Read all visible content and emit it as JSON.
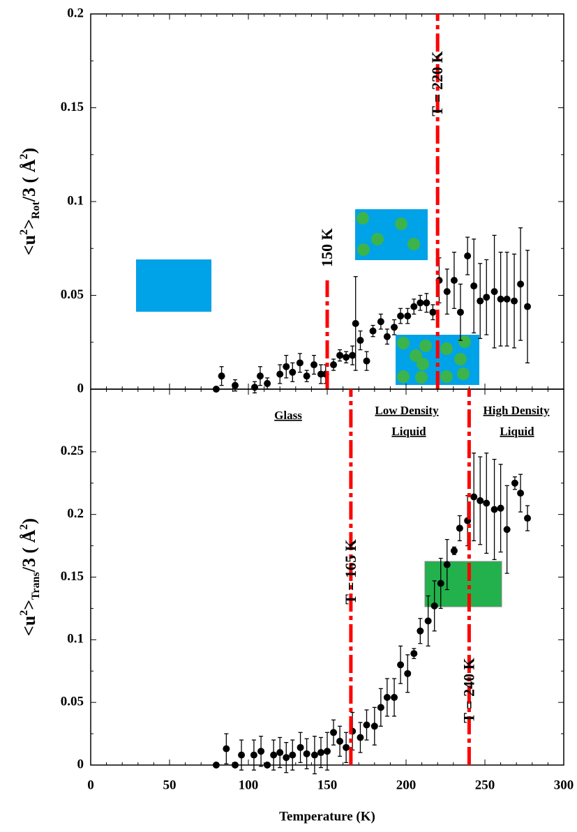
{
  "chart_data": [
    {
      "type": "scatter",
      "ylabel": [
        "<u",
        "2",
        ">",
        "Rot",
        "/3 ( Å",
        "2",
        ")"
      ],
      "xlim": [
        0,
        300
      ],
      "ylim": [
        0,
        0.2
      ],
      "yticks": [
        0,
        0.05,
        0.1,
        0.15,
        0.2
      ],
      "series": [
        {
          "color": "#000000",
          "x": [
            79.6,
            83,
            91.6,
            104,
            107.5,
            112,
            120,
            124,
            128,
            132.7,
            137,
            141.6,
            146,
            149,
            154,
            158,
            162,
            166,
            168,
            171,
            175,
            179,
            184,
            188,
            192.5,
            196.5,
            201,
            205,
            209,
            213,
            217,
            221,
            226,
            230.5,
            234.5,
            239,
            243,
            247,
            251,
            256,
            260,
            264,
            268.6,
            272.6,
            277
          ],
          "values": [
            0,
            0.007,
            0.002,
            0.001,
            0.007,
            0.003,
            0.008,
            0.012,
            0.009,
            0.014,
            0.007,
            0.013,
            0.008,
            0.008,
            0.013,
            0.018,
            0.017,
            0.018,
            0.035,
            0.026,
            0.015,
            0.031,
            0.036,
            0.028,
            0.033,
            0.039,
            0.039,
            0.044,
            0.046,
            0.046,
            0.041,
            0.058,
            0.052,
            0.058,
            0.041,
            0.071,
            0.055,
            0.047,
            0.049,
            0.052,
            0.048,
            0.048,
            0.047,
            0.056,
            0.044
          ],
          "errors": [
            0,
            0.005,
            0.003,
            0.003,
            0.005,
            0.003,
            0.005,
            0.006,
            0.005,
            0.005,
            0.003,
            0.005,
            0.005,
            0.005,
            0.003,
            0.003,
            0.003,
            0.005,
            0.025,
            0.005,
            0.005,
            0.003,
            0.004,
            0.004,
            0.004,
            0.004,
            0.004,
            0.004,
            0.004,
            0.005,
            0.004,
            0.012,
            0.012,
            0.015,
            0.015,
            0.01,
            0.025,
            0.02,
            0.02,
            0.03,
            0.025,
            0.025,
            0.025,
            0.03,
            0.03
          ]
        }
      ],
      "vlines": [
        {
          "x": 150,
          "label": "150 K",
          "color": "#ff0000"
        },
        {
          "x": 220,
          "label": "T = 220 K",
          "color": "#ff0000"
        }
      ]
    },
    {
      "type": "scatter",
      "ylabel": [
        "<u",
        "2",
        ">",
        "Trans",
        "/3 ( Å",
        "2",
        ")"
      ],
      "xlabel": "Temperature (K)",
      "xlim": [
        0,
        300
      ],
      "xticks": [
        0,
        50,
        100,
        150,
        200,
        250,
        300
      ],
      "ylim": [
        0,
        0.3
      ],
      "yticks": [
        0,
        0.05,
        0.1,
        0.15,
        0.2,
        0.25
      ],
      "series": [
        {
          "color": "#000000",
          "x": [
            79.6,
            86,
            91.6,
            95.6,
            103.5,
            108,
            112,
            116,
            120,
            124,
            128,
            133,
            137,
            142,
            146,
            150,
            154,
            158,
            162,
            166,
            171,
            175,
            180,
            184,
            188,
            192.5,
            196.5,
            201,
            205,
            209,
            214,
            218,
            222,
            226,
            230.5,
            234,
            239,
            243,
            247,
            251,
            256,
            260,
            264,
            269,
            272.6,
            277
          ],
          "values": [
            0,
            0.013,
            0,
            0.008,
            0.008,
            0.011,
            0,
            0.008,
            0.01,
            0.006,
            0.008,
            0.014,
            0.009,
            0.008,
            0.01,
            0.011,
            0.026,
            0.019,
            0.014,
            0.027,
            0.022,
            0.032,
            0.031,
            0.046,
            0.054,
            0.054,
            0.08,
            0.073,
            0.089,
            0.107,
            0.115,
            0.127,
            0.145,
            0.16,
            0.171,
            0.189,
            0.195,
            0.214,
            0.211,
            0.209,
            0.204,
            0.205,
            0.188,
            0.225,
            0.217,
            0.197
          ],
          "errors": [
            0,
            0.012,
            0,
            0.012,
            0.012,
            0.012,
            0,
            0.012,
            0.012,
            0.012,
            0.012,
            0.012,
            0.012,
            0.015,
            0.012,
            0.015,
            0.01,
            0.012,
            0.012,
            0.015,
            0.012,
            0.012,
            0.015,
            0.015,
            0.015,
            0.015,
            0.015,
            0.015,
            0.004,
            0.01,
            0.02,
            0.02,
            0.02,
            0.02,
            0.003,
            0.01,
            0.02,
            0.035,
            0.035,
            0.04,
            0.04,
            0.035,
            0.035,
            0.005,
            0.015,
            0.01
          ]
        }
      ],
      "vlines": [
        {
          "x": 165,
          "label": "T = 165 K",
          "color": "#ff0000"
        },
        {
          "x": 240,
          "label": "T = 240 K",
          "color": "#ff0000"
        }
      ],
      "regions": [
        "Glass",
        "Low Density",
        "Liquid",
        "High Density",
        "Liquid"
      ]
    }
  ]
}
